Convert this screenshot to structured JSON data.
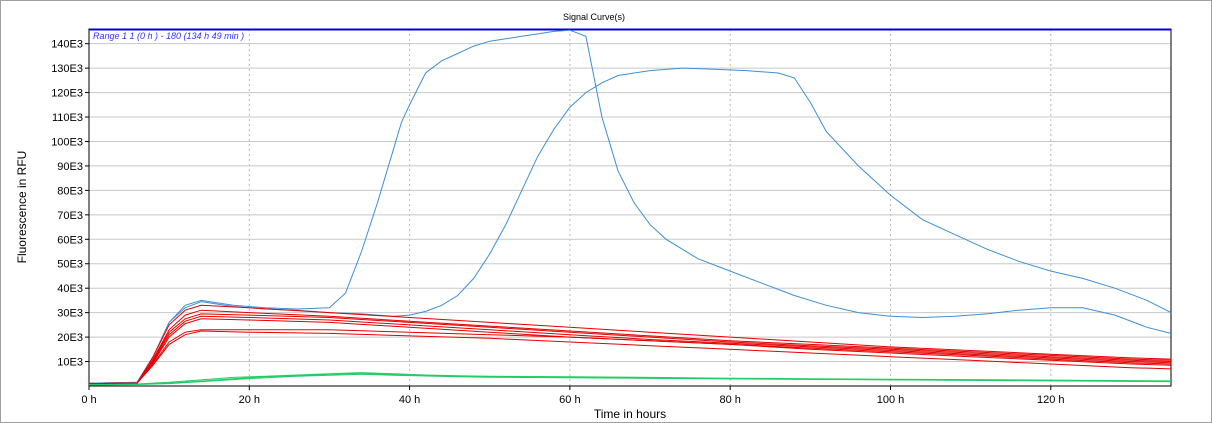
{
  "chart_data": {
    "type": "line",
    "title": "Signal Curve(s)",
    "xlabel": "Time in hours",
    "ylabel": "Fluorescence in RFU",
    "range_label": "Range 1 1 (0 h  ) - 180 (134 h 49 min  )",
    "xlim": [
      0,
      135
    ],
    "ylim": [
      0,
      146000
    ],
    "x_ticks": [
      0,
      20,
      40,
      60,
      80,
      100,
      120
    ],
    "x_tick_labels": [
      "0 h",
      "20 h",
      "40 h",
      "60 h",
      "80 h",
      "100 h",
      "120 h"
    ],
    "y_ticks": [
      10000,
      20000,
      30000,
      40000,
      50000,
      60000,
      70000,
      80000,
      90000,
      100000,
      110000,
      120000,
      130000,
      140000
    ],
    "y_tick_labels": [
      "10E3",
      "20E3",
      "30E3",
      "40E3",
      "50E3",
      "60E3",
      "70E3",
      "80E3",
      "90E3",
      "100E3",
      "110E3",
      "120E3",
      "130E3",
      "140E3"
    ],
    "grid": true,
    "series": [
      {
        "color": "#3d8fd6",
        "x": [
          0,
          6,
          8,
          10,
          12,
          14,
          18,
          22,
          26,
          30,
          32,
          34,
          36,
          38,
          39,
          40,
          42,
          44,
          46,
          48,
          50,
          52,
          54,
          56,
          58,
          60,
          62,
          64,
          66,
          68,
          70,
          72,
          76,
          80,
          84,
          88,
          92,
          96,
          100,
          104,
          108,
          112,
          116,
          120,
          124,
          128,
          132,
          135
        ],
        "y": [
          1200,
          1500,
          12000,
          26000,
          33000,
          35000,
          33000,
          32000,
          31500,
          32000,
          38000,
          55000,
          75000,
          97000,
          108000,
          115000,
          128000,
          133000,
          136000,
          139000,
          141000,
          142000,
          143000,
          144000,
          145000,
          145500,
          143000,
          110000,
          88000,
          75000,
          66000,
          60000,
          52000,
          47000,
          42000,
          37000,
          33000,
          30000,
          28500,
          28000,
          28500,
          29500,
          31000,
          32000,
          32000,
          29000,
          24000,
          21500
        ]
      },
      {
        "color": "#3d8fd6",
        "x": [
          0,
          6,
          8,
          10,
          12,
          14,
          18,
          22,
          26,
          30,
          34,
          36,
          38,
          40,
          42,
          44,
          46,
          48,
          50,
          52,
          54,
          56,
          58,
          60,
          62,
          64,
          66,
          70,
          74,
          78,
          82,
          86,
          88,
          90,
          92,
          96,
          100,
          104,
          108,
          112,
          116,
          120,
          124,
          128,
          132,
          135
        ],
        "y": [
          1200,
          1500,
          12000,
          26000,
          32000,
          34500,
          32500,
          31500,
          31000,
          30000,
          29500,
          29000,
          28500,
          29000,
          30500,
          33000,
          37000,
          44000,
          54000,
          66000,
          80000,
          94000,
          105000,
          114000,
          120000,
          124000,
          127000,
          129000,
          130000,
          129500,
          129000,
          128000,
          126000,
          116000,
          104000,
          90000,
          78000,
          68000,
          62000,
          56000,
          51000,
          47000,
          44000,
          40000,
          35000,
          30000
        ]
      },
      {
        "color": "#e60000",
        "x": [
          0,
          6,
          8,
          10,
          12,
          14,
          20,
          30,
          40,
          50,
          60,
          70,
          80,
          90,
          100,
          110,
          120,
          130,
          135
        ],
        "y": [
          1000,
          1200,
          12000,
          25000,
          31000,
          33000,
          32000,
          30000,
          28000,
          26000,
          24000,
          22000,
          20000,
          18000,
          16000,
          14500,
          13000,
          11500,
          11000
        ]
      },
      {
        "color": "#e60000",
        "x": [
          0,
          6,
          8,
          10,
          12,
          14,
          20,
          30,
          40,
          50,
          60,
          70,
          80,
          90,
          100,
          110,
          120,
          130,
          135
        ],
        "y": [
          1000,
          1200,
          11000,
          23000,
          29000,
          31000,
          30000,
          28500,
          26500,
          24500,
          22500,
          20500,
          18500,
          17000,
          15500,
          14000,
          12500,
          11000,
          10500
        ]
      },
      {
        "color": "#e60000",
        "x": [
          0,
          6,
          8,
          10,
          12,
          14,
          20,
          30,
          40,
          50,
          60,
          70,
          80,
          90,
          100,
          110,
          120,
          130,
          135
        ],
        "y": [
          1000,
          1200,
          10500,
          22000,
          27500,
          29500,
          29000,
          28000,
          26000,
          24000,
          22000,
          20000,
          18000,
          16500,
          15000,
          13500,
          12000,
          10500,
          10000
        ]
      },
      {
        "color": "#e60000",
        "x": [
          0,
          6,
          8,
          10,
          12,
          14,
          20,
          30,
          40,
          50,
          60,
          70,
          80,
          90,
          100,
          110,
          120,
          130,
          135
        ],
        "y": [
          1000,
          1200,
          10000,
          21000,
          26500,
          28500,
          28000,
          27000,
          25000,
          23000,
          21000,
          19000,
          17500,
          16000,
          14500,
          13000,
          11500,
          10000,
          9500
        ]
      },
      {
        "color": "#e60000",
        "x": [
          0,
          6,
          8,
          10,
          12,
          14,
          20,
          30,
          40,
          50,
          60,
          70,
          80,
          90,
          100,
          110,
          120,
          130,
          135
        ],
        "y": [
          1000,
          1200,
          9500,
          20000,
          25500,
          27500,
          27000,
          26000,
          24000,
          22000,
          20000,
          18500,
          17000,
          15500,
          14000,
          12500,
          11000,
          9500,
          9000
        ]
      },
      {
        "color": "#e60000",
        "x": [
          0,
          6,
          8,
          10,
          12,
          14,
          20,
          30,
          40,
          50,
          60,
          70,
          80,
          90,
          100,
          110,
          120,
          130,
          135
        ],
        "y": [
          1000,
          1200,
          9000,
          18000,
          22000,
          23000,
          23000,
          23000,
          22000,
          21000,
          20000,
          18500,
          17000,
          15000,
          13500,
          12000,
          10500,
          9000,
          8500
        ]
      },
      {
        "color": "#e60000",
        "x": [
          0,
          6,
          8,
          10,
          12,
          14,
          20,
          30,
          40,
          50,
          60,
          70,
          80,
          90,
          100,
          110,
          120,
          130,
          135
        ],
        "y": [
          1000,
          1200,
          8500,
          17000,
          21000,
          22500,
          22000,
          21500,
          20500,
          19500,
          18000,
          16500,
          15000,
          13500,
          12000,
          10500,
          9000,
          7500,
          7000
        ]
      },
      {
        "color": "#22cc66",
        "x": [
          0,
          6,
          10,
          14,
          18,
          22,
          26,
          30,
          34,
          38,
          42,
          46,
          50,
          60,
          70,
          80,
          90,
          100,
          110,
          120,
          130,
          135
        ],
        "y": [
          500,
          800,
          1500,
          2500,
          3500,
          4000,
          4500,
          5000,
          5500,
          5000,
          4500,
          4200,
          4000,
          3800,
          3500,
          3200,
          3000,
          2800,
          2600,
          2400,
          2200,
          2100
        ]
      },
      {
        "color": "#22cc66",
        "x": [
          0,
          6,
          10,
          14,
          18,
          22,
          26,
          30,
          34,
          38,
          42,
          46,
          50,
          60,
          70,
          80,
          90,
          100,
          110,
          120,
          130,
          135
        ],
        "y": [
          500,
          700,
          1200,
          2000,
          3000,
          3800,
          4200,
          4800,
          5200,
          4700,
          4300,
          4000,
          3800,
          3600,
          3300,
          3000,
          2800,
          2600,
          2400,
          2200,
          2000,
          1900
        ]
      },
      {
        "color": "#22cc66",
        "x": [
          0,
          6,
          10,
          14,
          18,
          22,
          26,
          30,
          34,
          38,
          42,
          46,
          50,
          60,
          70,
          80,
          90,
          100,
          110,
          120,
          130,
          135
        ],
        "y": [
          400,
          600,
          1000,
          1800,
          2600,
          3400,
          4000,
          4400,
          4800,
          4400,
          4100,
          3800,
          3600,
          3400,
          3100,
          2900,
          2700,
          2500,
          2300,
          2100,
          1900,
          1800
        ]
      }
    ]
  }
}
